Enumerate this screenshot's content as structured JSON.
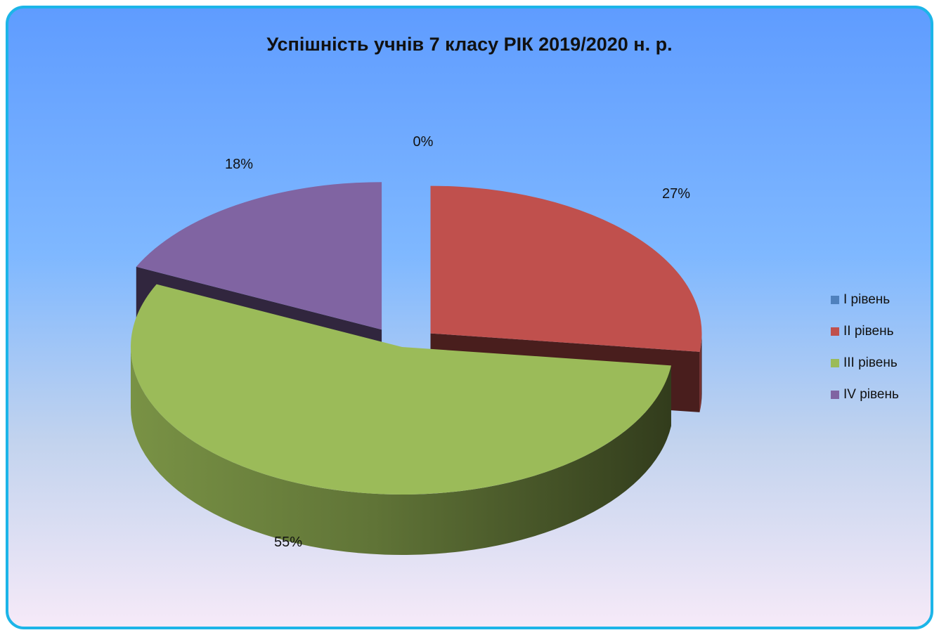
{
  "chart_data": {
    "type": "pie",
    "title": "Успішність учнів 7 класу РІК 2019/2020 н. р.",
    "categories": [
      "І рівень",
      "ІІ рівень",
      "ІІІ рівень",
      "ІV рівень"
    ],
    "values": [
      0,
      27,
      55,
      18
    ],
    "data_labels": [
      "0%",
      "27%",
      "55%",
      "18%"
    ],
    "colors": [
      "#4f81bd",
      "#c0504d",
      "#9bbb59",
      "#8064a2"
    ],
    "legend_position": "right",
    "exploded": true,
    "three_d": true
  }
}
